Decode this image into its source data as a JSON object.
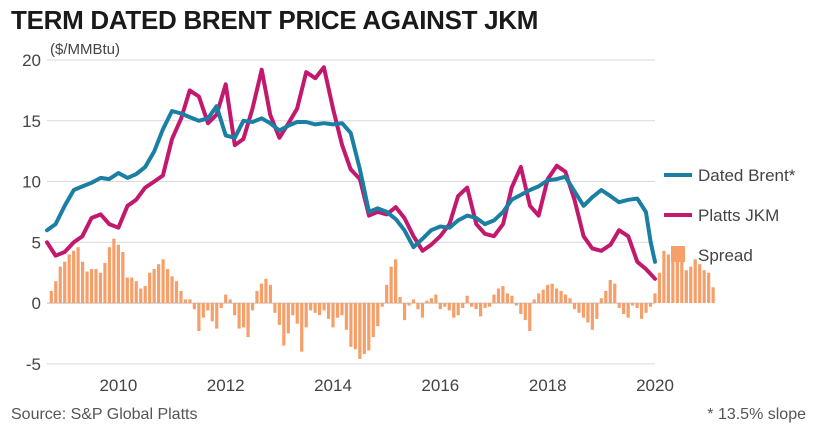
{
  "title": "TERM DATED BRENT PRICE AGAINST JKM",
  "unit_label": "($/MMBtu)",
  "source": "Source: S&P Global Platts",
  "footnote": "* 13.5% slope",
  "colors": {
    "brent": "#1a7fa3",
    "jkm": "#c2186d",
    "spread": "#f5a06b",
    "grid": "#d9d9d9"
  },
  "chart_data": {
    "type": "line",
    "x_label": "",
    "y_label": "($/MMBtu)",
    "ylim": [
      -6,
      20
    ],
    "xlim": [
      2009.17,
      2020.5
    ],
    "y_ticks": [
      20,
      15,
      10,
      5,
      0,
      -5
    ],
    "x_ticks": [
      {
        "label": "2010",
        "value": 2010
      },
      {
        "label": "2012",
        "value": 2012
      },
      {
        "label": "2014",
        "value": 2014
      },
      {
        "label": "2016",
        "value": 2016
      },
      {
        "label": "2018",
        "value": 2018
      },
      {
        "label": "2020",
        "value": 2020
      }
    ],
    "legend_position": "right",
    "grid": true,
    "series": [
      {
        "name": "Dated Brent*",
        "type": "line",
        "points": [
          [
            2009.17,
            6.0
          ],
          [
            2009.33,
            6.5
          ],
          [
            2009.5,
            8.0
          ],
          [
            2009.67,
            9.3
          ],
          [
            2009.83,
            9.6
          ],
          [
            2010.0,
            9.9
          ],
          [
            2010.17,
            10.3
          ],
          [
            2010.33,
            10.2
          ],
          [
            2010.5,
            10.7
          ],
          [
            2010.67,
            10.3
          ],
          [
            2010.83,
            10.6
          ],
          [
            2011.0,
            11.2
          ],
          [
            2011.17,
            12.5
          ],
          [
            2011.33,
            14.3
          ],
          [
            2011.5,
            15.8
          ],
          [
            2011.67,
            15.6
          ],
          [
            2011.83,
            15.3
          ],
          [
            2012.0,
            15.0
          ],
          [
            2012.17,
            15.2
          ],
          [
            2012.33,
            16.2
          ],
          [
            2012.5,
            13.8
          ],
          [
            2012.67,
            13.6
          ],
          [
            2012.83,
            15.0
          ],
          [
            2013.0,
            14.9
          ],
          [
            2013.17,
            15.2
          ],
          [
            2013.33,
            14.8
          ],
          [
            2013.5,
            14.2
          ],
          [
            2013.67,
            14.6
          ],
          [
            2013.83,
            14.9
          ],
          [
            2014.0,
            14.9
          ],
          [
            2014.17,
            14.7
          ],
          [
            2014.33,
            14.8
          ],
          [
            2014.5,
            14.7
          ],
          [
            2014.67,
            14.8
          ],
          [
            2014.83,
            14.0
          ],
          [
            2015.0,
            11.0
          ],
          [
            2015.17,
            7.5
          ],
          [
            2015.33,
            7.8
          ],
          [
            2015.5,
            7.5
          ],
          [
            2015.67,
            6.9
          ],
          [
            2015.83,
            6.0
          ],
          [
            2016.0,
            4.6
          ],
          [
            2016.17,
            5.3
          ],
          [
            2016.33,
            6.0
          ],
          [
            2016.5,
            6.3
          ],
          [
            2016.67,
            6.2
          ],
          [
            2016.83,
            6.8
          ],
          [
            2017.0,
            7.2
          ],
          [
            2017.17,
            7.0
          ],
          [
            2017.33,
            6.5
          ],
          [
            2017.5,
            6.8
          ],
          [
            2017.67,
            7.5
          ],
          [
            2017.83,
            8.5
          ],
          [
            2018.0,
            8.9
          ],
          [
            2018.17,
            9.3
          ],
          [
            2018.33,
            9.6
          ],
          [
            2018.5,
            10.1
          ],
          [
            2018.67,
            10.2
          ],
          [
            2018.83,
            10.4
          ],
          [
            2019.0,
            9.2
          ],
          [
            2019.17,
            8.0
          ],
          [
            2019.33,
            8.7
          ],
          [
            2019.5,
            9.3
          ],
          [
            2019.67,
            8.8
          ],
          [
            2019.83,
            8.3
          ],
          [
            2020.0,
            8.5
          ],
          [
            2020.17,
            8.6
          ],
          [
            2020.33,
            7.5
          ],
          [
            2020.42,
            5.0
          ],
          [
            2020.5,
            3.4
          ]
        ]
      },
      {
        "name": "Platts JKM",
        "type": "line",
        "points": [
          [
            2009.17,
            5.0
          ],
          [
            2009.33,
            3.9
          ],
          [
            2009.5,
            4.2
          ],
          [
            2009.67,
            5.0
          ],
          [
            2009.83,
            5.5
          ],
          [
            2010.0,
            7.0
          ],
          [
            2010.17,
            7.3
          ],
          [
            2010.33,
            6.5
          ],
          [
            2010.5,
            6.2
          ],
          [
            2010.67,
            8.0
          ],
          [
            2010.83,
            8.5
          ],
          [
            2011.0,
            9.5
          ],
          [
            2011.17,
            10.0
          ],
          [
            2011.33,
            10.5
          ],
          [
            2011.5,
            13.5
          ],
          [
            2011.67,
            15.2
          ],
          [
            2011.83,
            17.5
          ],
          [
            2012.0,
            17.0
          ],
          [
            2012.17,
            14.8
          ],
          [
            2012.33,
            15.5
          ],
          [
            2012.5,
            18.0
          ],
          [
            2012.67,
            13.0
          ],
          [
            2012.83,
            13.5
          ],
          [
            2013.0,
            16.0
          ],
          [
            2013.17,
            19.2
          ],
          [
            2013.33,
            15.5
          ],
          [
            2013.5,
            13.6
          ],
          [
            2013.67,
            14.8
          ],
          [
            2013.83,
            16.0
          ],
          [
            2014.0,
            19.0
          ],
          [
            2014.17,
            18.5
          ],
          [
            2014.33,
            19.4
          ],
          [
            2014.5,
            16.0
          ],
          [
            2014.67,
            13.0
          ],
          [
            2014.83,
            11.0
          ],
          [
            2015.0,
            10.2
          ],
          [
            2015.17,
            7.2
          ],
          [
            2015.33,
            7.5
          ],
          [
            2015.5,
            7.3
          ],
          [
            2015.67,
            7.9
          ],
          [
            2015.83,
            7.0
          ],
          [
            2016.0,
            5.5
          ],
          [
            2016.17,
            4.3
          ],
          [
            2016.33,
            4.8
          ],
          [
            2016.5,
            5.5
          ],
          [
            2016.67,
            6.5
          ],
          [
            2016.83,
            8.8
          ],
          [
            2017.0,
            9.5
          ],
          [
            2017.17,
            6.5
          ],
          [
            2017.33,
            5.7
          ],
          [
            2017.5,
            5.5
          ],
          [
            2017.67,
            6.5
          ],
          [
            2017.83,
            9.5
          ],
          [
            2018.0,
            11.2
          ],
          [
            2018.17,
            8.0
          ],
          [
            2018.33,
            7.2
          ],
          [
            2018.5,
            10.2
          ],
          [
            2018.67,
            11.3
          ],
          [
            2018.83,
            10.8
          ],
          [
            2019.0,
            8.5
          ],
          [
            2019.17,
            5.5
          ],
          [
            2019.33,
            4.5
          ],
          [
            2019.5,
            4.3
          ],
          [
            2019.67,
            4.8
          ],
          [
            2019.83,
            6.0
          ],
          [
            2020.0,
            5.5
          ],
          [
            2020.17,
            3.4
          ],
          [
            2020.33,
            2.8
          ],
          [
            2020.5,
            2.0
          ]
        ]
      },
      {
        "name": "Spread",
        "type": "bar",
        "start": 2009.25,
        "step": 0.08333,
        "values": [
          1.0,
          1.8,
          3.0,
          3.4,
          4.0,
          4.3,
          4.6,
          3.4,
          2.6,
          2.8,
          2.8,
          2.5,
          3.3,
          4.6,
          5.3,
          4.8,
          4.2,
          2.1,
          2.1,
          1.8,
          1.2,
          1.4,
          2.5,
          2.8,
          3.2,
          3.6,
          2.8,
          2.2,
          1.8,
          1.0,
          0.3,
          0.3,
          -0.5,
          -2.3,
          -1.2,
          -0.6,
          -1.5,
          -2.1,
          -0.4,
          0.7,
          0.3,
          -1.0,
          -2.1,
          -2.0,
          -2.8,
          -0.6,
          1.0,
          1.6,
          2.0,
          1.5,
          -0.8,
          -1.8,
          -3.5,
          -2.5,
          -1.0,
          -1.7,
          -4.0,
          -2.0,
          -0.6,
          -0.8,
          -1.0,
          -0.6,
          -1.3,
          -2.0,
          -1.2,
          -1.0,
          -2.2,
          -3.6,
          -3.8,
          -4.6,
          -4.2,
          -3.9,
          -2.8,
          -1.9,
          -0.3,
          1.5,
          3.0,
          3.6,
          0.5,
          -1.4,
          -0.2,
          0.3,
          -0.5,
          -1.2,
          0.2,
          0.4,
          0.7,
          -0.5,
          -0.3,
          -0.6,
          -1.2,
          -1.0,
          -0.4,
          0.6,
          -0.3,
          -0.5,
          -1.1,
          -0.4,
          -0.3,
          0.7,
          1.2,
          1.4,
          0.8,
          0.6,
          -0.2,
          -0.9,
          -1.4,
          -2.3,
          0.3,
          0.8,
          1.1,
          1.5,
          1.6,
          1.2,
          1.0,
          0.7,
          0.4,
          -0.5,
          -0.8,
          -1.2,
          -1.6,
          -2.2,
          -1.3,
          0.4,
          1.0,
          1.9,
          1.6,
          -0.4,
          -0.9,
          -1.2,
          -0.2,
          -0.4,
          -1.3,
          -0.8,
          -0.3,
          0.8,
          2.5,
          4.3,
          4.0,
          4.2,
          3.8,
          4.3,
          2.7,
          3.0,
          3.6,
          3.2,
          2.7,
          2.5,
          1.3
        ]
      }
    ]
  }
}
